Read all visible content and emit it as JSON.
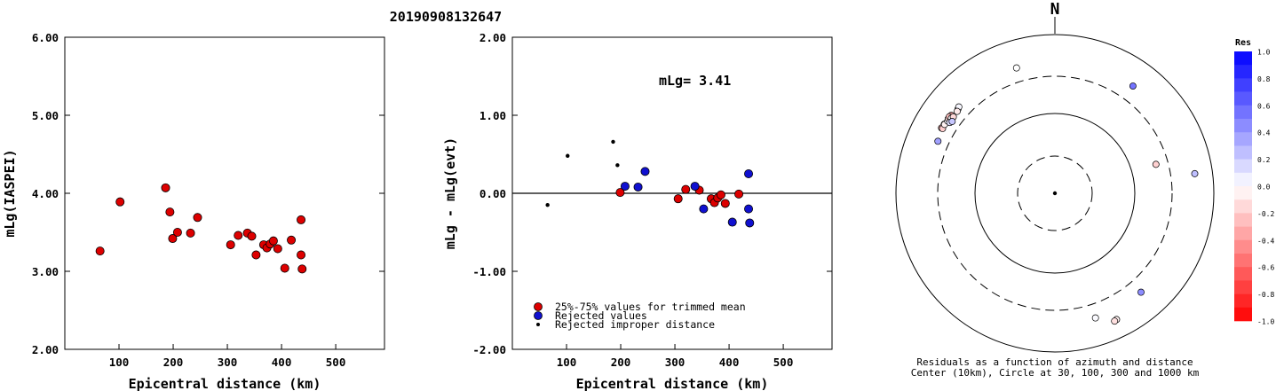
{
  "event_id": "20190908132647",
  "chart_data": [
    {
      "type": "scatter",
      "xlabel": "Epicentral distance (km)",
      "ylabel": "mLg(IASPEI)",
      "xlim": [
        0,
        590
      ],
      "ylim": [
        2.0,
        6.0
      ],
      "x_ticks": [
        "100",
        "200",
        "300",
        "400",
        "500"
      ],
      "y_ticks": [
        "2.00",
        "3.00",
        "4.00",
        "5.00",
        "6.00"
      ],
      "grid": false,
      "series": [
        {
          "color": "#dd0000",
          "points": [
            [
              65,
              3.26
            ],
            [
              102,
              3.89
            ],
            [
              186,
              4.07
            ],
            [
              194,
              3.76
            ],
            [
              199,
              3.42
            ],
            [
              208,
              3.5
            ],
            [
              232,
              3.49
            ],
            [
              245,
              3.69
            ],
            [
              306,
              3.34
            ],
            [
              320,
              3.46
            ],
            [
              337,
              3.49
            ],
            [
              345,
              3.45
            ],
            [
              353,
              3.21
            ],
            [
              367,
              3.34
            ],
            [
              373,
              3.3
            ],
            [
              379,
              3.35
            ],
            [
              385,
              3.39
            ],
            [
              393,
              3.29
            ],
            [
              406,
              3.04
            ],
            [
              418,
              3.4
            ],
            [
              436,
              3.21
            ],
            [
              436,
              3.66
            ],
            [
              438,
              3.03
            ]
          ]
        }
      ]
    },
    {
      "type": "scatter",
      "xlabel": "Epicentral distance (km)",
      "ylabel": "mLg - mLg(evt)",
      "xlim": [
        0,
        590
      ],
      "ylim": [
        -2.0,
        2.0
      ],
      "x_ticks": [
        "100",
        "200",
        "300",
        "400",
        "500"
      ],
      "y_ticks": [
        "-2.00",
        "-1.00",
        "0.00",
        "1.00",
        "2.00"
      ],
      "annotation": "mLg= 3.41",
      "grid": false,
      "legend": {
        "position": "bottom-left",
        "entries": [
          {
            "label": "25%-75% values for trimmed mean",
            "color": "#dd0000",
            "marker": "large"
          },
          {
            "label": "Rejected values",
            "color": "#1010d0",
            "marker": "large"
          },
          {
            "label": "Rejected improper distance",
            "color": "#000000",
            "marker": "small"
          }
        ]
      },
      "series": [
        {
          "color": "#dd0000",
          "marker": "large",
          "points": [
            [
              199,
              0.01
            ],
            [
              306,
              -0.07
            ],
            [
              320,
              0.05
            ],
            [
              345,
              0.04
            ],
            [
              367,
              -0.07
            ],
            [
              373,
              -0.12
            ],
            [
              379,
              -0.06
            ],
            [
              385,
              -0.02
            ],
            [
              393,
              -0.13
            ],
            [
              418,
              -0.01
            ]
          ]
        },
        {
          "color": "#1010d0",
          "marker": "large",
          "points": [
            [
              208,
              0.09
            ],
            [
              232,
              0.08
            ],
            [
              245,
              0.28
            ],
            [
              337,
              0.09
            ],
            [
              353,
              -0.2
            ],
            [
              406,
              -0.37
            ],
            [
              436,
              -0.2
            ],
            [
              436,
              0.25
            ],
            [
              438,
              -0.38
            ]
          ]
        },
        {
          "color": "#000000",
          "marker": "small",
          "points": [
            [
              65,
              -0.15
            ],
            [
              102,
              0.48
            ],
            [
              186,
              0.66
            ],
            [
              194,
              0.36
            ]
          ]
        }
      ]
    },
    {
      "type": "scatter",
      "subtype": "polar",
      "north_label": "N",
      "caption_line1": "Residuals as a function of azimuth and distance",
      "caption_line2": "Center (10km), Circle at 30, 100, 300 and 1000 km",
      "rings_km": [
        30,
        100,
        300,
        1000
      ],
      "colorbar": {
        "title": "Res",
        "ticks": [
          "1.0",
          "0.8",
          "0.6",
          "0.4",
          "0.2",
          "0.0",
          "-0.2",
          "-0.4",
          "-0.6",
          "-0.8",
          "-1.0"
        ],
        "min": -1.0,
        "max": 1.0
      },
      "points": [
        {
          "azimuth_deg": 302,
          "distance_km": 440,
          "residual": -0.15
        },
        {
          "azimuth_deg": 300,
          "distance_km": 445,
          "residual": -0.3
        },
        {
          "azimuth_deg": 300,
          "distance_km": 430,
          "residual": -0.2
        },
        {
          "azimuth_deg": 302,
          "distance_km": 435,
          "residual": -0.05
        },
        {
          "azimuth_deg": 304,
          "distance_km": 425,
          "residual": 0.02
        },
        {
          "azimuth_deg": 305,
          "distance_km": 435,
          "residual": -0.12
        },
        {
          "azimuth_deg": 307,
          "distance_km": 430,
          "residual": -0.35
        },
        {
          "azimuth_deg": 306,
          "distance_km": 440,
          "residual": -0.25
        },
        {
          "azimuth_deg": 306,
          "distance_km": 410,
          "residual": 0.0
        },
        {
          "azimuth_deg": 307,
          "distance_km": 400,
          "residual": -0.15
        },
        {
          "azimuth_deg": 311,
          "distance_km": 415,
          "residual": 0.0
        },
        {
          "azimuth_deg": 312,
          "distance_km": 425,
          "residual": 0.03
        },
        {
          "azimuth_deg": 310,
          "distance_km": 405,
          "residual": -0.08
        },
        {
          "azimuth_deg": 304,
          "distance_km": 395,
          "residual": 0.12
        },
        {
          "azimuth_deg": 305,
          "distance_km": 380,
          "residual": 0.22
        },
        {
          "azimuth_deg": 294,
          "distance_km": 410,
          "residual": 0.37
        },
        {
          "azimuth_deg": 343,
          "distance_km": 450,
          "residual": 0.0
        },
        {
          "azimuth_deg": 36,
          "distance_km": 470,
          "residual": 0.55
        },
        {
          "azimuth_deg": 82,
          "distance_km": 600,
          "residual": 0.25
        },
        {
          "azimuth_deg": 74,
          "distance_km": 210,
          "residual": -0.18
        },
        {
          "azimuth_deg": 139,
          "distance_km": 450,
          "residual": 0.45
        },
        {
          "azimuth_deg": 162,
          "distance_km": 450,
          "residual": 0.02
        },
        {
          "azimuth_deg": 154,
          "distance_km": 590,
          "residual": -0.05
        },
        {
          "azimuth_deg": 155,
          "distance_km": 600,
          "residual": -0.12
        }
      ]
    }
  ]
}
